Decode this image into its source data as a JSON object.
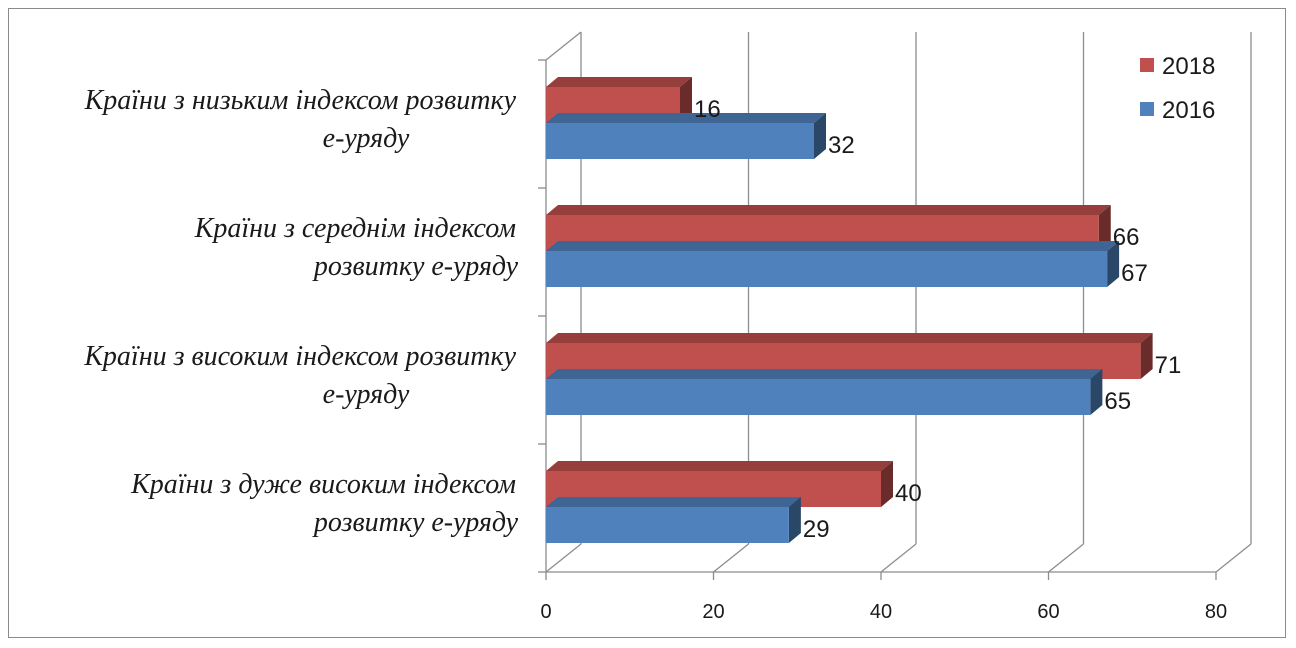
{
  "chart_data": {
    "type": "bar",
    "orientation": "horizontal",
    "three_d": true,
    "categories": [
      [
        "Країни з низьким індексом розвитку",
        "е-уряду"
      ],
      [
        "Країни з середнім індексом",
        "розвитку е-уряду"
      ],
      [
        "Країни з високим індексом розвитку",
        "е-уряду"
      ],
      [
        "Країни з дуже високим індексом",
        "розвитку е-уряду"
      ]
    ],
    "series": [
      {
        "name": "2018",
        "color": "#c0504d",
        "values": [
          16,
          66,
          71,
          40
        ]
      },
      {
        "name": "2016",
        "color": "#4f81bd",
        "values": [
          32,
          67,
          65,
          29
        ]
      }
    ],
    "xlim": [
      0,
      80
    ],
    "xticks": [
      0,
      20,
      40,
      60,
      80
    ],
    "grid": true,
    "legend_position": "top-right"
  }
}
